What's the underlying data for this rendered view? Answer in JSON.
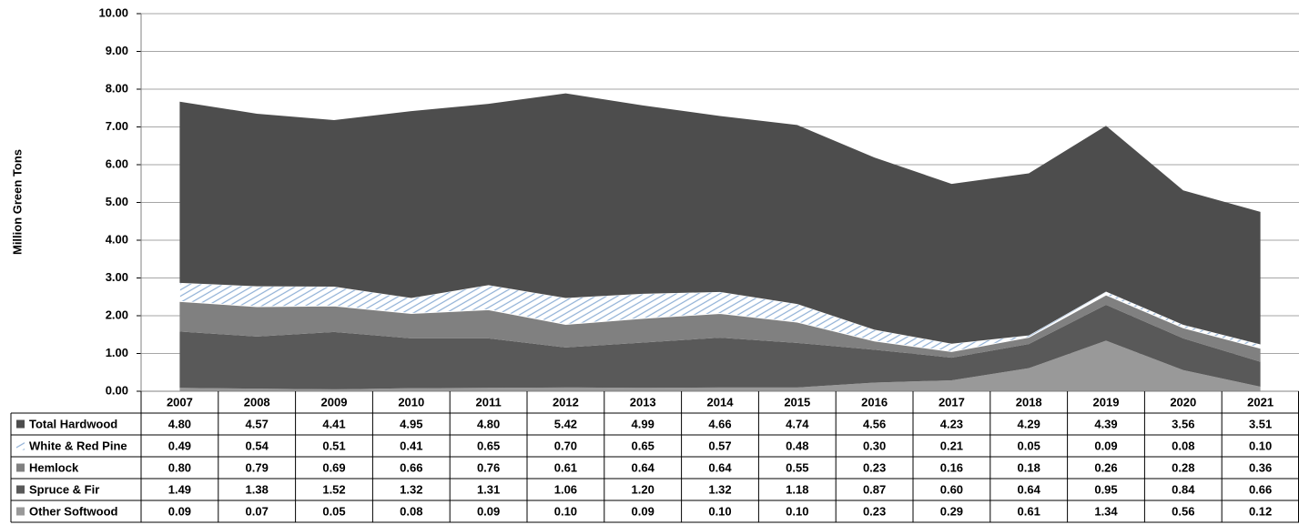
{
  "chart_data": {
    "type": "stacked-area",
    "y_label": "Million Green Tons",
    "categories": [
      "2007",
      "2008",
      "2009",
      "2010",
      "2011",
      "2012",
      "2013",
      "2014",
      "2015",
      "2016",
      "2017",
      "2018",
      "2019",
      "2020",
      "2021"
    ],
    "ylim": [
      0,
      10
    ],
    "yticks": [
      {
        "value": 0,
        "label": "0.00"
      },
      {
        "value": 1,
        "label": "1.00"
      },
      {
        "value": 2,
        "label": "2.00"
      },
      {
        "value": 3,
        "label": "3.00"
      },
      {
        "value": 4,
        "label": "4.00"
      },
      {
        "value": 5,
        "label": "5.00"
      },
      {
        "value": 6,
        "label": "6.00"
      },
      {
        "value": 7,
        "label": "7.00"
      },
      {
        "value": 8,
        "label": "8.00"
      },
      {
        "value": 9,
        "label": "9.00"
      },
      {
        "value": 10,
        "label": "10.00"
      }
    ],
    "grid": true,
    "series": [
      {
        "name": "Total Hardwood",
        "color": "#4d4d4d",
        "values": [
          4.8,
          4.57,
          4.41,
          4.95,
          4.8,
          5.42,
          4.99,
          4.66,
          4.74,
          4.56,
          4.23,
          4.29,
          4.39,
          3.56,
          3.51
        ],
        "value_labels": [
          "4.80",
          "4.57",
          "4.41",
          "4.95",
          "4.80",
          "5.42",
          "4.99",
          "4.66",
          "4.74",
          "4.56",
          "4.23",
          "4.29",
          "4.39",
          "3.56",
          "3.51"
        ]
      },
      {
        "name": "White & Red Pine",
        "color": "#8fb0d6",
        "hatch": true,
        "values": [
          0.49,
          0.54,
          0.51,
          0.41,
          0.65,
          0.7,
          0.65,
          0.57,
          0.48,
          0.3,
          0.21,
          0.05,
          0.09,
          0.08,
          0.1
        ],
        "value_labels": [
          "0.49",
          "0.54",
          "0.51",
          "0.41",
          "0.65",
          "0.70",
          "0.65",
          "0.57",
          "0.48",
          "0.30",
          "0.21",
          "0.05",
          "0.09",
          "0.08",
          "0.10"
        ]
      },
      {
        "name": "Hemlock",
        "color": "#808080",
        "values": [
          0.8,
          0.79,
          0.69,
          0.66,
          0.76,
          0.61,
          0.64,
          0.64,
          0.55,
          0.23,
          0.16,
          0.18,
          0.26,
          0.28,
          0.36
        ],
        "value_labels": [
          "0.80",
          "0.79",
          "0.69",
          "0.66",
          "0.76",
          "0.61",
          "0.64",
          "0.64",
          "0.55",
          "0.23",
          "0.16",
          "0.18",
          "0.26",
          "0.28",
          "0.36"
        ]
      },
      {
        "name": "Spruce & Fir",
        "color": "#595959",
        "values": [
          1.49,
          1.38,
          1.52,
          1.32,
          1.31,
          1.06,
          1.2,
          1.32,
          1.18,
          0.87,
          0.6,
          0.64,
          0.95,
          0.84,
          0.66
        ],
        "value_labels": [
          "1.49",
          "1.38",
          "1.52",
          "1.32",
          "1.31",
          "1.06",
          "1.20",
          "1.32",
          "1.18",
          "0.87",
          "0.60",
          "0.64",
          "0.95",
          "0.84",
          "0.66"
        ]
      },
      {
        "name": "Other Softwood",
        "color": "#999999",
        "values": [
          0.09,
          0.07,
          0.05,
          0.08,
          0.09,
          0.1,
          0.09,
          0.1,
          0.1,
          0.23,
          0.29,
          0.61,
          1.34,
          0.56,
          0.12
        ],
        "value_labels": [
          "0.09",
          "0.07",
          "0.05",
          "0.08",
          "0.09",
          "0.10",
          "0.09",
          "0.10",
          "0.10",
          "0.23",
          "0.29",
          "0.61",
          "1.34",
          "0.56",
          "0.12"
        ]
      }
    ]
  }
}
